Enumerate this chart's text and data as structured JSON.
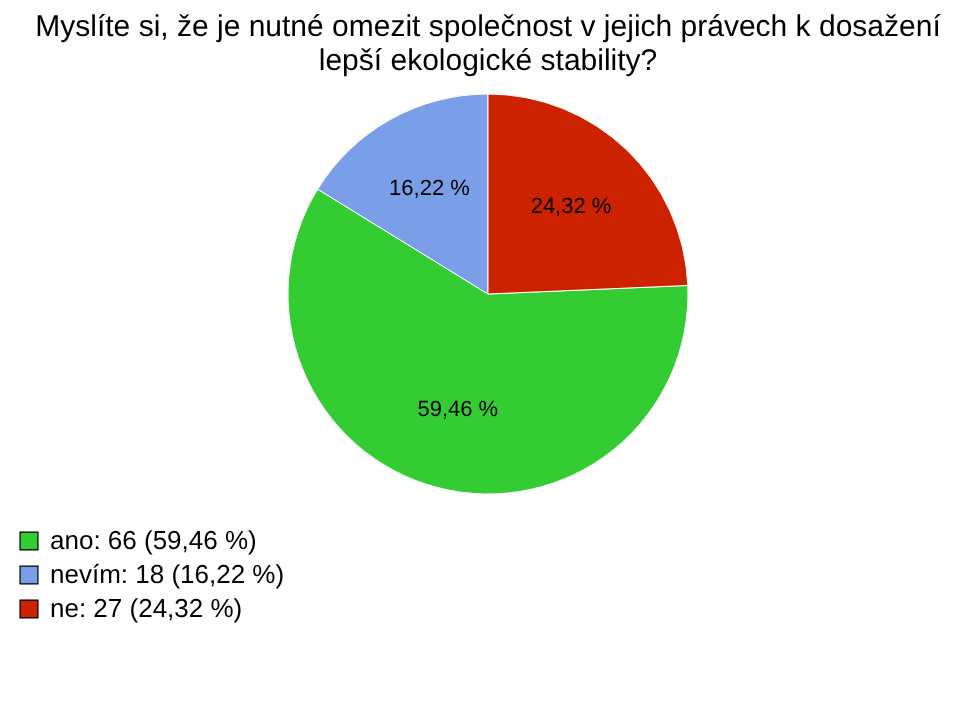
{
  "chart_data": {
    "type": "pie",
    "title": [
      "Myslíte si, že je nutné omezit společnost v jejich právech k dosažení",
      "lepší ekologické stability?"
    ],
    "categories": [
      "ano: 66 (59,46 %)",
      "nevím: 18 (16,22 %)",
      "ne: 27 (24,32 %)"
    ],
    "values": [
      59.46,
      16.22,
      24.32
    ],
    "value_labels": [
      "59,46 %",
      "16,22 %",
      "24,32 %"
    ],
    "colors": [
      "#33cc33",
      "#7a9ee8",
      "#cc2200"
    ],
    "legend": "bottom left"
  }
}
